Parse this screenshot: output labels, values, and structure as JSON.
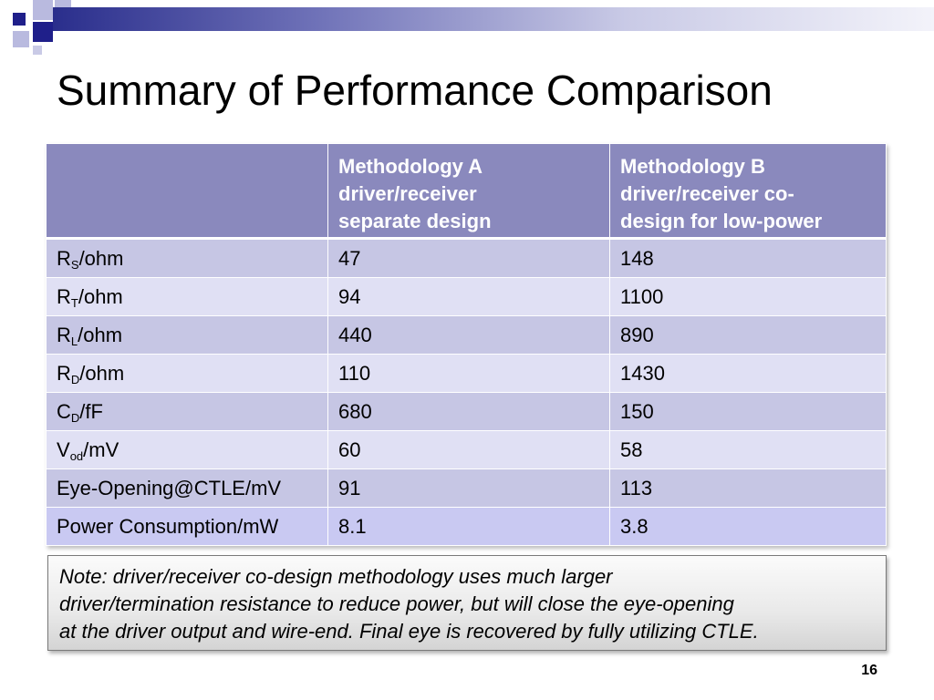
{
  "slide": {
    "title": "Summary of Performance Comparison",
    "page_number": "16"
  },
  "table": {
    "headers": [
      "",
      [
        "Methodology A",
        "driver/receiver",
        "separate design"
      ],
      [
        "Methodology B",
        "driver/receiver co-",
        "design for low-power"
      ]
    ],
    "rows": [
      {
        "label": "R",
        "sub": "S",
        "unit": "/ohm",
        "a": "47",
        "b": "148"
      },
      {
        "label": "R",
        "sub": "T",
        "unit": "/ohm",
        "a": "94",
        "b": "1100"
      },
      {
        "label": "R",
        "sub": "L",
        "unit": "/ohm",
        "a": "440",
        "b": "890"
      },
      {
        "label": "R",
        "sub": "D",
        "unit": "/ohm",
        "a": "110",
        "b": "1430"
      },
      {
        "label": "C",
        "sub": "D",
        "unit": "/fF",
        "a": "680",
        "b": "150"
      },
      {
        "label": "V",
        "sub": "od",
        "unit": "/mV",
        "a": "60",
        "b": "58"
      },
      {
        "label": "Eye-Opening@CTLE/mV",
        "sub": "",
        "unit": "",
        "a": "91",
        "b": "113"
      },
      {
        "label": "Power Consumption/mW",
        "sub": "",
        "unit": "",
        "a": "8.1",
        "b": "3.8"
      }
    ]
  },
  "note": {
    "lines": [
      "Note: driver/receiver co-design methodology uses much larger",
      "driver/termination resistance to reduce power, but will close the eye-opening",
      "at the driver output and wire-end. Final eye is recovered by fully utilizing CTLE."
    ]
  },
  "colors": {
    "header_bg": "#8a89bd",
    "row_dark": "#c6c6e4",
    "row_light": "#e0e0f4",
    "accent_navy": "#1f1f8a"
  }
}
